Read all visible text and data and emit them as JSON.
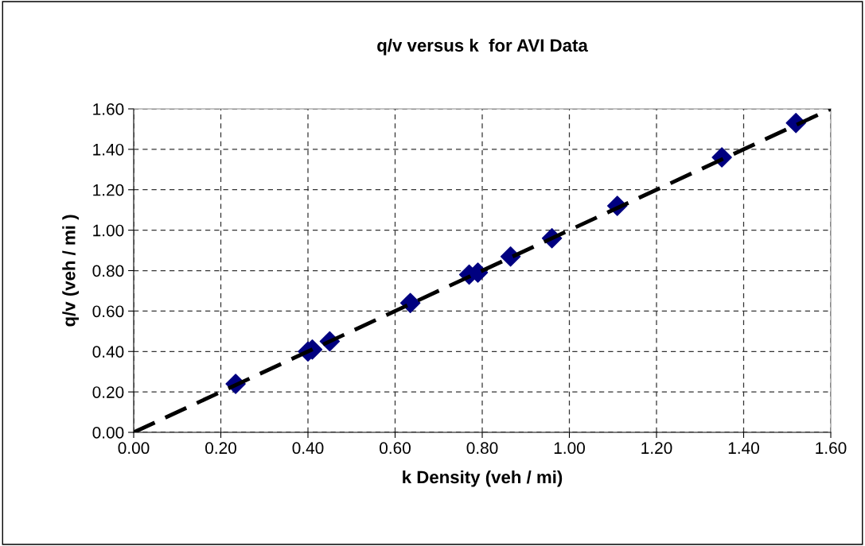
{
  "chart_data": {
    "type": "scatter",
    "title": "q/v versus k  for AVI Data",
    "xlabel": "k Density (veh / mi)",
    "ylabel": "q/v (veh / mi )",
    "xlim": [
      0,
      1.6
    ],
    "ylim": [
      0,
      1.6
    ],
    "xticks": [
      {
        "value": 0,
        "label": "0.00"
      },
      {
        "value": 0.2,
        "label": "0.20"
      },
      {
        "value": 0.4,
        "label": "0.40"
      },
      {
        "value": 0.6,
        "label": "0.60"
      },
      {
        "value": 0.8,
        "label": "0.80"
      },
      {
        "value": 1.0,
        "label": "1.00"
      },
      {
        "value": 1.2,
        "label": "1.20"
      },
      {
        "value": 1.4,
        "label": "1.40"
      },
      {
        "value": 1.6,
        "label": "1.60"
      }
    ],
    "yticks": [
      {
        "value": 0,
        "label": "0.00"
      },
      {
        "value": 0.2,
        "label": "0.20"
      },
      {
        "value": 0.4,
        "label": "0.40"
      },
      {
        "value": 0.6,
        "label": "0.60"
      },
      {
        "value": 0.8,
        "label": "0.80"
      },
      {
        "value": 1.0,
        "label": "1.00"
      },
      {
        "value": 1.2,
        "label": "1.20"
      },
      {
        "value": 1.4,
        "label": "1.40"
      },
      {
        "value": 1.6,
        "label": "1.60"
      }
    ],
    "grid": true,
    "marker": "diamond",
    "series": [
      {
        "color": "#000080",
        "x": [
          0.234,
          0.4,
          0.41,
          0.45,
          0.635,
          0.77,
          0.79,
          0.865,
          0.96,
          1.11,
          1.35,
          1.52
        ],
        "values": [
          0.24,
          0.4,
          0.41,
          0.45,
          0.64,
          0.78,
          0.79,
          0.87,
          0.96,
          1.12,
          1.36,
          1.53
        ]
      },
      {
        "type": "line",
        "color": "#000000",
        "line_style": "dashed",
        "marker": "none",
        "x": [
          0,
          1.6
        ],
        "values": [
          0,
          1.6
        ]
      }
    ]
  }
}
